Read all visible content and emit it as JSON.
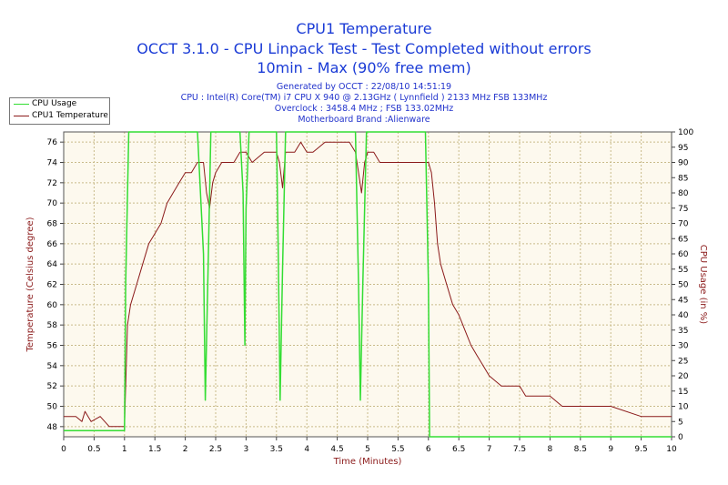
{
  "title": "CPU1 Temperature",
  "subtitle1": "OCCT 3.1.0 - CPU Linpack Test - Test Completed without errors",
  "subtitle2": "10min - Max (90% free mem)",
  "info": {
    "generated": "Generated by OCCT : 22/08/10 14:51:19",
    "cpu": "CPU : Intel(R) Core(TM) i7 CPU X 940 @ 2.13GHz ( Lynnfield ) 2133 MHz FSB 133MHz",
    "overclock": "Overclock : 3458.4 MHz ; FSB 133.02MHz",
    "motherboard": "Motherboard Brand :Alienware"
  },
  "legend": {
    "usage": "CPU Usage",
    "temp": "CPU1 Temperature"
  },
  "colors": {
    "temp": "#8b1a1a",
    "usage": "#33dd33",
    "title": "#1a3bd6",
    "plot_bg": "#fdf9ee",
    "grid": "#c9bb8a"
  },
  "chart_data": {
    "type": "line",
    "xlabel": "Time (Minutes)",
    "ylabel_left": "Temperature (Celsius degree)",
    "ylabel_right": "CPU Usage (in %)",
    "xlim": [
      0,
      10
    ],
    "ylim_left": [
      47,
      77
    ],
    "ylim_right": [
      0,
      100
    ],
    "grid": true,
    "legend_position": "top-left",
    "x_ticks": [
      "0",
      "0.5",
      "1",
      "1.5",
      "2",
      "2.5",
      "3",
      "3.5",
      "4",
      "4.5",
      "5",
      "5.5",
      "6",
      "6.5",
      "7",
      "7.5",
      "8",
      "8.5",
      "9",
      "9.5",
      "10"
    ],
    "y_ticks_left": [
      "48",
      "50",
      "52",
      "54",
      "56",
      "58",
      "60",
      "62",
      "64",
      "66",
      "68",
      "70",
      "72",
      "74",
      "76"
    ],
    "y_ticks_right": [
      "0",
      "5",
      "10",
      "15",
      "20",
      "25",
      "30",
      "35",
      "40",
      "45",
      "50",
      "55",
      "60",
      "65",
      "70",
      "75",
      "80",
      "85",
      "90",
      "95",
      "100"
    ],
    "series": [
      {
        "name": "CPU1 Temperature",
        "axis": "left",
        "points": [
          [
            0,
            49
          ],
          [
            0.2,
            49
          ],
          [
            0.3,
            48.5
          ],
          [
            0.35,
            49.5
          ],
          [
            0.45,
            48.5
          ],
          [
            0.6,
            49
          ],
          [
            0.75,
            48
          ],
          [
            0.9,
            48
          ],
          [
            1.0,
            48
          ],
          [
            1.02,
            52
          ],
          [
            1.05,
            58
          ],
          [
            1.1,
            60
          ],
          [
            1.2,
            62
          ],
          [
            1.3,
            64
          ],
          [
            1.4,
            66
          ],
          [
            1.5,
            67
          ],
          [
            1.6,
            68
          ],
          [
            1.7,
            70
          ],
          [
            1.8,
            71
          ],
          [
            1.9,
            72
          ],
          [
            2.0,
            73
          ],
          [
            2.1,
            73
          ],
          [
            2.2,
            74
          ],
          [
            2.3,
            74
          ],
          [
            2.35,
            71
          ],
          [
            2.4,
            69.5
          ],
          [
            2.45,
            72
          ],
          [
            2.5,
            73
          ],
          [
            2.6,
            74
          ],
          [
            2.8,
            74
          ],
          [
            2.9,
            75
          ],
          [
            3.0,
            75
          ],
          [
            3.1,
            74
          ],
          [
            3.3,
            75
          ],
          [
            3.4,
            75
          ],
          [
            3.5,
            75
          ],
          [
            3.55,
            74
          ],
          [
            3.6,
            71.5
          ],
          [
            3.65,
            75
          ],
          [
            3.8,
            75
          ],
          [
            3.9,
            76
          ],
          [
            4.0,
            75
          ],
          [
            4.1,
            75
          ],
          [
            4.3,
            76
          ],
          [
            4.5,
            76
          ],
          [
            4.7,
            76
          ],
          [
            4.8,
            75
          ],
          [
            4.85,
            73
          ],
          [
            4.9,
            71
          ],
          [
            4.95,
            74
          ],
          [
            5.0,
            75
          ],
          [
            5.1,
            75
          ],
          [
            5.2,
            74
          ],
          [
            5.5,
            74
          ],
          [
            5.6,
            74
          ],
          [
            5.8,
            74
          ],
          [
            6.0,
            74
          ],
          [
            6.05,
            73
          ],
          [
            6.1,
            70
          ],
          [
            6.15,
            66
          ],
          [
            6.2,
            64
          ],
          [
            6.3,
            62
          ],
          [
            6.4,
            60
          ],
          [
            6.5,
            59
          ],
          [
            6.6,
            57.5
          ],
          [
            6.7,
            56
          ],
          [
            6.8,
            55
          ],
          [
            6.9,
            54
          ],
          [
            7.0,
            53
          ],
          [
            7.2,
            52
          ],
          [
            7.5,
            52
          ],
          [
            7.6,
            51
          ],
          [
            8.0,
            51
          ],
          [
            8.2,
            50
          ],
          [
            9.0,
            50
          ],
          [
            9.5,
            49
          ],
          [
            10.0,
            49
          ]
        ]
      },
      {
        "name": "CPU Usage",
        "axis": "right",
        "points": [
          [
            0,
            2
          ],
          [
            1.0,
            2
          ],
          [
            1.02,
            50
          ],
          [
            1.07,
            100
          ],
          [
            2.2,
            100
          ],
          [
            2.3,
            60
          ],
          [
            2.33,
            12
          ],
          [
            2.38,
            60
          ],
          [
            2.42,
            100
          ],
          [
            2.9,
            100
          ],
          [
            2.95,
            80
          ],
          [
            2.98,
            30
          ],
          [
            3.0,
            75
          ],
          [
            3.05,
            100
          ],
          [
            3.5,
            100
          ],
          [
            3.53,
            60
          ],
          [
            3.56,
            12
          ],
          [
            3.6,
            55
          ],
          [
            3.65,
            100
          ],
          [
            4.8,
            100
          ],
          [
            4.85,
            50
          ],
          [
            4.88,
            12
          ],
          [
            4.92,
            50
          ],
          [
            4.98,
            100
          ],
          [
            5.95,
            100
          ],
          [
            6.0,
            50
          ],
          [
            6.02,
            0
          ],
          [
            10.0,
            0
          ]
        ]
      }
    ]
  }
}
